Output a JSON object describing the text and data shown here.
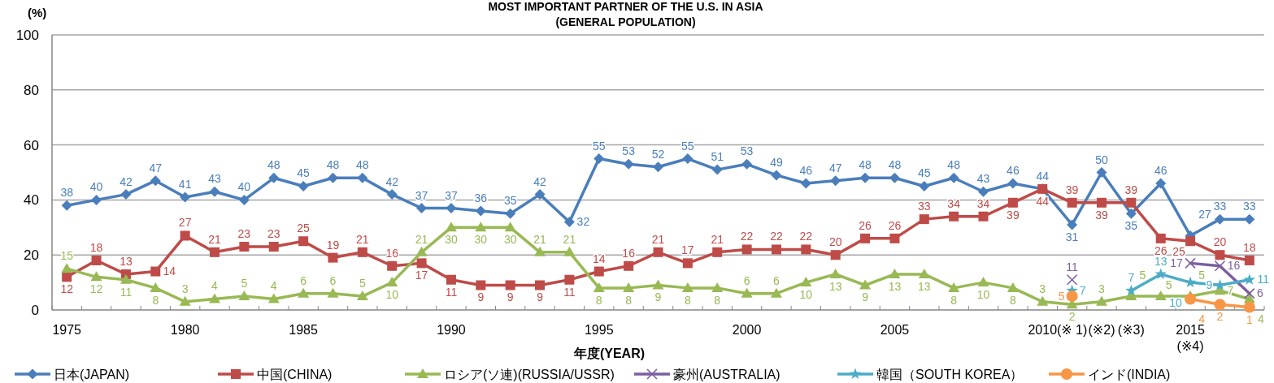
{
  "chart_data": {
    "type": "line",
    "title": "MOST IMPORTANT PARTNER OF THE U.S. IN ASIA",
    "subtitle": "(GENERAL POPULATION)",
    "xlabel": "年度(YEAR)",
    "ylabel": "(%)",
    "categories": [
      "1975",
      null,
      null,
      null,
      "1980",
      null,
      null,
      null,
      "1985",
      null,
      null,
      null,
      null,
      "1990",
      null,
      null,
      null,
      null,
      "1995",
      null,
      null,
      null,
      null,
      "2000",
      null,
      null,
      null,
      null,
      "2005",
      null,
      null,
      null,
      null,
      "2010",
      "(※ 1)",
      "(※2)",
      "(※3)",
      null,
      "2015\n(※4)",
      null,
      null
    ],
    "ylim": [
      0,
      100
    ],
    "yticks": [
      0,
      20,
      40,
      60,
      80,
      100
    ],
    "grid": "y",
    "legend": "bottom",
    "data_labels": true,
    "series": [
      {
        "name": "日本(JAPAN)",
        "color": "#4a7ebb",
        "marker": "diamond",
        "line_style": "solid",
        "values": [
          38,
          40,
          42,
          47,
          41,
          43,
          40,
          48,
          45,
          48,
          48,
          42,
          37,
          37,
          36,
          35,
          42,
          32,
          55,
          53,
          52,
          55,
          51,
          53,
          49,
          46,
          47,
          48,
          48,
          45,
          48,
          43,
          46,
          44,
          31,
          50,
          35,
          46,
          27,
          33,
          33
        ]
      },
      {
        "name": "中国(CHINA)",
        "color": "#be4b48",
        "marker": "square",
        "line_style": "solid",
        "values": [
          12,
          18,
          13,
          14,
          27,
          21,
          23,
          23,
          25,
          19,
          21,
          16,
          17,
          11,
          9,
          9,
          9,
          11,
          14,
          16,
          21,
          17,
          21,
          22,
          22,
          22,
          20,
          26,
          26,
          33,
          34,
          34,
          39,
          44,
          39,
          39,
          39,
          26,
          25,
          20,
          18
        ]
      },
      {
        "name": "ロシア(ソ連)(RUSSIA/USSR)",
        "color": "#98b954",
        "marker": "triangle",
        "line_style": "solid",
        "values": [
          15,
          12,
          11,
          8,
          3,
          4,
          5,
          4,
          6,
          6,
          5,
          10,
          21,
          30,
          30,
          30,
          21,
          21,
          8,
          8,
          9,
          8,
          8,
          6,
          6,
          10,
          13,
          9,
          13,
          13,
          8,
          10,
          8,
          3,
          2,
          3,
          5,
          5,
          5,
          7,
          4
        ]
      },
      {
        "name": "豪州(AUSTRALIA)",
        "color": "#7d5fa0",
        "marker": "cross",
        "line_style": "solid",
        "values": [
          null,
          null,
          null,
          null,
          null,
          null,
          null,
          null,
          null,
          null,
          null,
          null,
          null,
          null,
          null,
          null,
          null,
          null,
          null,
          null,
          null,
          null,
          null,
          null,
          null,
          null,
          null,
          null,
          null,
          null,
          null,
          null,
          null,
          null,
          11,
          null,
          null,
          null,
          17,
          16,
          6
        ]
      },
      {
        "name": "韓国（SOUTH KOREA）",
        "color": "#4bacc6",
        "marker": "star",
        "line_style": "solid",
        "values": [
          null,
          null,
          null,
          null,
          null,
          null,
          null,
          null,
          null,
          null,
          null,
          null,
          null,
          null,
          null,
          null,
          null,
          null,
          null,
          null,
          null,
          null,
          null,
          null,
          null,
          null,
          null,
          null,
          null,
          null,
          null,
          null,
          null,
          null,
          7,
          null,
          7,
          13,
          10,
          9,
          11
        ]
      },
      {
        "name": "インド(INDIA)",
        "color": "#f79646",
        "marker": "circle",
        "line_style": "solid",
        "values": [
          null,
          null,
          null,
          null,
          null,
          null,
          null,
          null,
          null,
          null,
          null,
          null,
          null,
          null,
          null,
          null,
          null,
          null,
          null,
          null,
          null,
          null,
          null,
          null,
          null,
          null,
          null,
          null,
          null,
          null,
          null,
          null,
          null,
          null,
          5,
          null,
          null,
          null,
          4,
          2,
          1
        ]
      }
    ]
  }
}
